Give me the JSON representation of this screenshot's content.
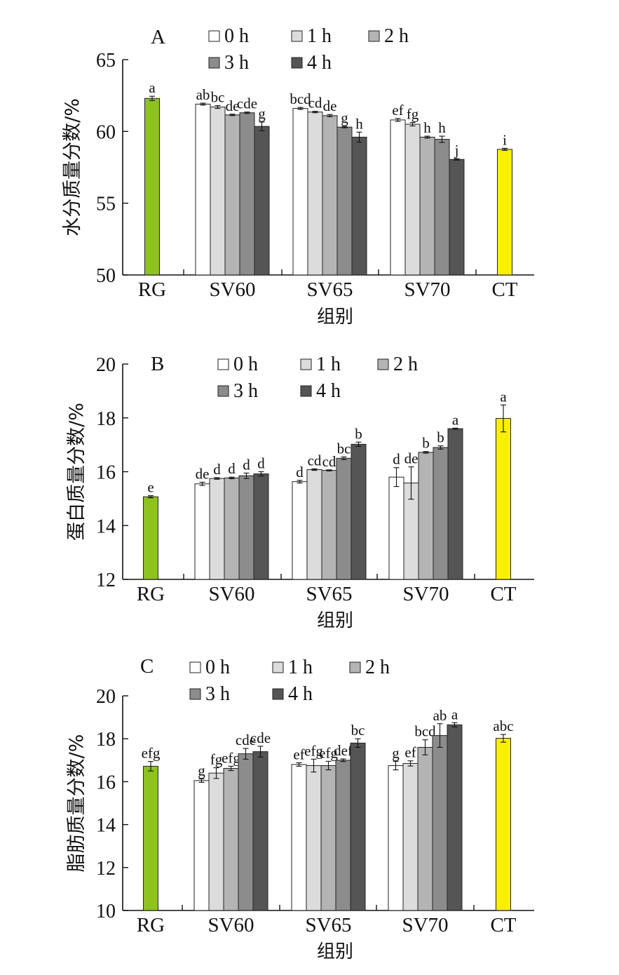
{
  "chart_data": [
    {
      "type": "bar",
      "panel_label": "A",
      "ylabel": "水分质量分数/%",
      "xlabel": "组别",
      "ylim": [
        50,
        65
      ],
      "yticks": [
        50,
        55,
        60,
        65
      ],
      "groups": [
        "RG",
        "SV60",
        "SV65",
        "SV70",
        "CT"
      ],
      "legend": [
        "0 h",
        "1 h",
        "2 h",
        "3 h",
        "4 h"
      ],
      "single_bars": [
        {
          "group": "RG",
          "value": 62.3,
          "err": 0.15,
          "label": "a",
          "color": "#8dc21f"
        },
        {
          "group": "CT",
          "value": 58.75,
          "err": 0.07,
          "label": "i",
          "color": "#f8f000"
        }
      ],
      "series_values": {
        "SV60": [
          61.9,
          61.7,
          61.15,
          61.3,
          60.35
        ],
        "SV65": [
          61.6,
          61.35,
          61.1,
          60.3,
          59.6
        ],
        "SV70": [
          60.8,
          60.5,
          59.6,
          59.45,
          58.05
        ]
      },
      "series_errors": {
        "SV60": [
          0.07,
          0.1,
          0.05,
          0.05,
          0.3
        ],
        "SV65": [
          0.07,
          0.05,
          0.08,
          0.05,
          0.35
        ],
        "SV70": [
          0.1,
          0.12,
          0.07,
          0.22,
          0.05
        ]
      },
      "series_labels": {
        "SV60": [
          "ab",
          "bc",
          "de",
          "cde",
          "g"
        ],
        "SV65": [
          "bcd",
          "cd",
          "de",
          "g",
          "h"
        ],
        "SV70": [
          "ef",
          "fg",
          "h",
          "h",
          "j"
        ]
      }
    },
    {
      "type": "bar",
      "panel_label": "B",
      "ylabel": "蛋白质量分数/%",
      "xlabel": "组别",
      "ylim": [
        12,
        20
      ],
      "yticks": [
        12,
        14,
        16,
        18,
        20
      ],
      "groups": [
        "RG",
        "SV60",
        "SV65",
        "SV70",
        "CT"
      ],
      "legend": [
        "0 h",
        "1 h",
        "2 h",
        "3 h",
        "4 h"
      ],
      "single_bars": [
        {
          "group": "RG",
          "value": 15.07,
          "err": 0.04,
          "label": "e",
          "color": "#8dc21f"
        },
        {
          "group": "CT",
          "value": 17.98,
          "err": 0.5,
          "label": "a",
          "color": "#f8f000"
        }
      ],
      "series_values": {
        "SV60": [
          15.55,
          15.75,
          15.77,
          15.85,
          15.92
        ],
        "SV65": [
          15.63,
          16.08,
          16.05,
          16.5,
          17.02
        ],
        "SV70": [
          15.8,
          15.58,
          16.72,
          16.9,
          17.6
        ]
      },
      "series_errors": {
        "SV60": [
          0.06,
          0.03,
          0.03,
          0.1,
          0.08
        ],
        "SV65": [
          0.05,
          0.03,
          0.02,
          0.05,
          0.08
        ],
        "SV70": [
          0.35,
          0.6,
          0.03,
          0.06,
          0.02
        ]
      },
      "series_labels": {
        "SV60": [
          "de",
          "d",
          "d",
          "d",
          "d"
        ],
        "SV65": [
          "d",
          "cd",
          "cd",
          "bc",
          "b"
        ],
        "SV70": [
          "d",
          "de",
          "b",
          "b",
          "a"
        ]
      }
    },
    {
      "type": "bar",
      "panel_label": "C",
      "ylabel": "脂肪质量分数/%",
      "xlabel": "组别",
      "ylim": [
        10,
        20
      ],
      "yticks": [
        10,
        12,
        14,
        16,
        18,
        20
      ],
      "groups": [
        "RG",
        "SV60",
        "SV65",
        "SV70",
        "CT"
      ],
      "legend": [
        "0 h",
        "1 h",
        "2 h",
        "3 h",
        "4 h"
      ],
      "single_bars": [
        {
          "group": "RG",
          "value": 16.72,
          "err": 0.22,
          "label": "efg",
          "color": "#8dc21f"
        },
        {
          "group": "CT",
          "value": 18.02,
          "err": 0.18,
          "label": "abc",
          "color": "#f8f000"
        }
      ],
      "series_values": {
        "SV60": [
          16.05,
          16.4,
          16.62,
          17.3,
          17.4
        ],
        "SV65": [
          16.8,
          16.75,
          16.75,
          17.0,
          17.8
        ],
        "SV70": [
          16.75,
          16.85,
          17.6,
          18.15,
          18.65
        ]
      },
      "series_errors": {
        "SV60": [
          0.08,
          0.25,
          0.1,
          0.25,
          0.25
        ],
        "SV65": [
          0.08,
          0.3,
          0.2,
          0.06,
          0.2
        ],
        "SV70": [
          0.2,
          0.12,
          0.35,
          0.55,
          0.1
        ]
      },
      "series_labels": {
        "SV60": [
          "g",
          "fg",
          "efg",
          "cde",
          "cde"
        ],
        "SV65": [
          "ef",
          "efg",
          "efg",
          "def",
          "bc"
        ],
        "SV70": [
          "g",
          "ef",
          "bcd",
          "ab",
          "a"
        ]
      }
    }
  ],
  "colors": {
    "series": [
      "#ffffff",
      "#dcdcdc",
      "#b4b4b4",
      "#8c8c8c",
      "#555555"
    ],
    "rg": "#8dc21f",
    "ct": "#f8f000",
    "axis": "#111111"
  }
}
